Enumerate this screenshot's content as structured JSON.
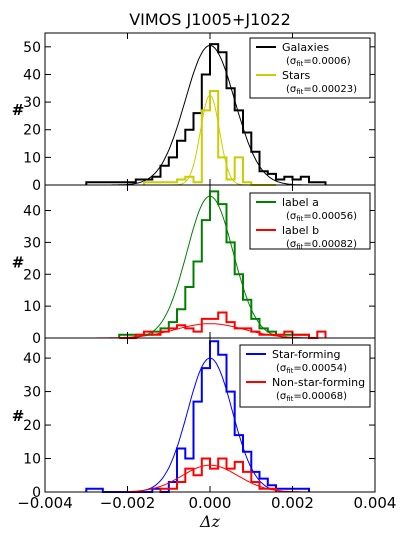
{
  "chart_data": {
    "type": "histogram",
    "title": "VIMOS J1005+J1022",
    "xlabel": "Δz",
    "xlim": [
      -0.004,
      0.004
    ],
    "xticks": [
      "−0.004",
      "−0.002",
      "0.000",
      "0.002",
      "0.004"
    ],
    "panels": [
      {
        "ylabel": "#",
        "ylim": [
          0,
          55
        ],
        "yticks": [
          "0",
          "10",
          "20",
          "30",
          "40",
          "50"
        ],
        "legend_position": "top-right",
        "series": [
          {
            "name": "Galaxies",
            "sigma_label": "σ",
            "sigma_sub": "fit",
            "sigma_value": "=0.0006",
            "color": "#000000",
            "bin_edges": [
              -0.003,
              -0.0028,
              -0.0026,
              -0.0024,
              -0.0022,
              -0.002,
              -0.0018,
              -0.0016,
              -0.0014,
              -0.0012,
              -0.001,
              -0.0008,
              -0.0006,
              -0.0004,
              -0.0002,
              0.0,
              0.0002,
              0.0004,
              0.0006,
              0.0008,
              0.001,
              0.0012,
              0.0014,
              0.0016,
              0.0018,
              0.002,
              0.0022,
              0.0024,
              0.0026,
              0.0028
            ],
            "counts": [
              1,
              1,
              1,
              1,
              1,
              1,
              2,
              2,
              3,
              7,
              10,
              16,
              20,
              26,
              40,
              51,
              48,
              35,
              27,
              19,
              12,
              5,
              4,
              2,
              3,
              2,
              3,
              1,
              1
            ],
            "gauss_peak": 50.5
          },
          {
            "name": "Stars",
            "sigma_label": "σ",
            "sigma_sub": "fit",
            "sigma_value": "=0.00023",
            "color": "#cccc00",
            "bin_edges": [
              -0.0016,
              -0.0014,
              -0.0012,
              -0.001,
              -0.0008,
              -0.0006,
              -0.0004,
              -0.0002,
              0.0,
              0.0002,
              0.0004,
              0.0006,
              0.0008,
              0.001,
              0.0012,
              0.0014,
              0.0016
            ],
            "counts": [
              1,
              1,
              1,
              1,
              2,
              3,
              1,
              27,
              34,
              10,
              2,
              10,
              1,
              0,
              0,
              0
            ],
            "gauss_peak": 32.5
          }
        ]
      },
      {
        "ylabel": "#",
        "ylim": [
          0,
          48
        ],
        "yticks": [
          "0",
          "10",
          "20",
          "30",
          "40"
        ],
        "legend_position": "top-right",
        "series": [
          {
            "name": "label a",
            "sigma_label": "σ",
            "sigma_sub": "fit",
            "sigma_value": "=0.00056",
            "color": "#008000",
            "bin_edges": [
              -0.0022,
              -0.002,
              -0.0018,
              -0.0016,
              -0.0014,
              -0.0012,
              -0.001,
              -0.0008,
              -0.0006,
              -0.0004,
              -0.0002,
              0.0,
              0.0002,
              0.0004,
              0.0006,
              0.0008,
              0.001,
              0.0012,
              0.0014,
              0.0016,
              0.0018,
              0.002,
              0.0022,
              0.0024
            ],
            "counts": [
              1,
              1,
              1,
              1,
              2,
              3,
              5,
              9,
              16,
              24,
              37,
              46,
              42,
              30,
              20,
              12,
              6,
              3,
              2,
              1,
              1,
              1,
              1
            ],
            "gauss_peak": 44.5
          },
          {
            "name": "label b",
            "sigma_label": "σ",
            "sigma_sub": "fit",
            "sigma_value": "=0.00082",
            "color": "#ff0000",
            "bin_edges": [
              -0.0022,
              -0.002,
              -0.0018,
              -0.0016,
              -0.0014,
              -0.0012,
              -0.001,
              -0.0008,
              -0.0006,
              -0.0004,
              -0.0002,
              0.0,
              0.0002,
              0.0004,
              0.0006,
              0.0008,
              0.001,
              0.0012,
              0.0014,
              0.0016,
              0.0018,
              0.002,
              0.0022,
              0.0024,
              0.0026,
              0.0028
            ],
            "counts": [
              0,
              0,
              1,
              2,
              1,
              2,
              3,
              4,
              3,
              2,
              6,
              6,
              8,
              5,
              3,
              3,
              2,
              1,
              1,
              1,
              2,
              1,
              1,
              0,
              2
            ],
            "gauss_peak": 4.5
          }
        ]
      },
      {
        "ylabel": "#",
        "ylim": [
          0,
          46
        ],
        "yticks": [
          "0",
          "10",
          "20",
          "30",
          "40"
        ],
        "legend_position": "top-right",
        "series": [
          {
            "name": "Star-forming",
            "sigma_label": "σ",
            "sigma_sub": "fit",
            "sigma_value": "=0.00054",
            "color": "#0000ff",
            "bin_edges": [
              -0.003,
              -0.0028,
              -0.0026,
              -0.0024,
              -0.0022,
              -0.002,
              -0.0018,
              -0.0016,
              -0.0014,
              -0.0012,
              -0.001,
              -0.0008,
              -0.0006,
              -0.0004,
              -0.0002,
              0.0,
              0.0002,
              0.0004,
              0.0006,
              0.0008,
              0.001,
              0.0012,
              0.0014,
              0.0016,
              0.0018,
              0.002,
              0.0022,
              0.0024
            ],
            "counts": [
              1,
              1,
              0,
              0,
              0,
              0,
              0,
              0,
              1,
              0,
              3,
              13,
              10,
              27,
              37,
              45,
              41,
              30,
              17,
              12,
              6,
              4,
              2,
              1,
              1,
              1,
              1
            ],
            "gauss_peak": 40
          },
          {
            "name": "Non-star-forming",
            "sigma_label": "σ",
            "sigma_sub": "fit",
            "sigma_value": "=0.00068",
            "color": "#ff0000",
            "bin_edges": [
              -0.0012,
              -0.001,
              -0.0008,
              -0.0006,
              -0.0004,
              -0.0002,
              0.0,
              0.0002,
              0.0004,
              0.0006,
              0.0008,
              0.001,
              0.0012,
              0.0014,
              0.0016
            ],
            "counts": [
              1,
              1,
              3,
              7,
              5,
              10,
              7,
              10,
              7,
              9,
              6,
              3,
              1,
              1
            ],
            "gauss_peak": 8
          }
        ]
      }
    ]
  }
}
